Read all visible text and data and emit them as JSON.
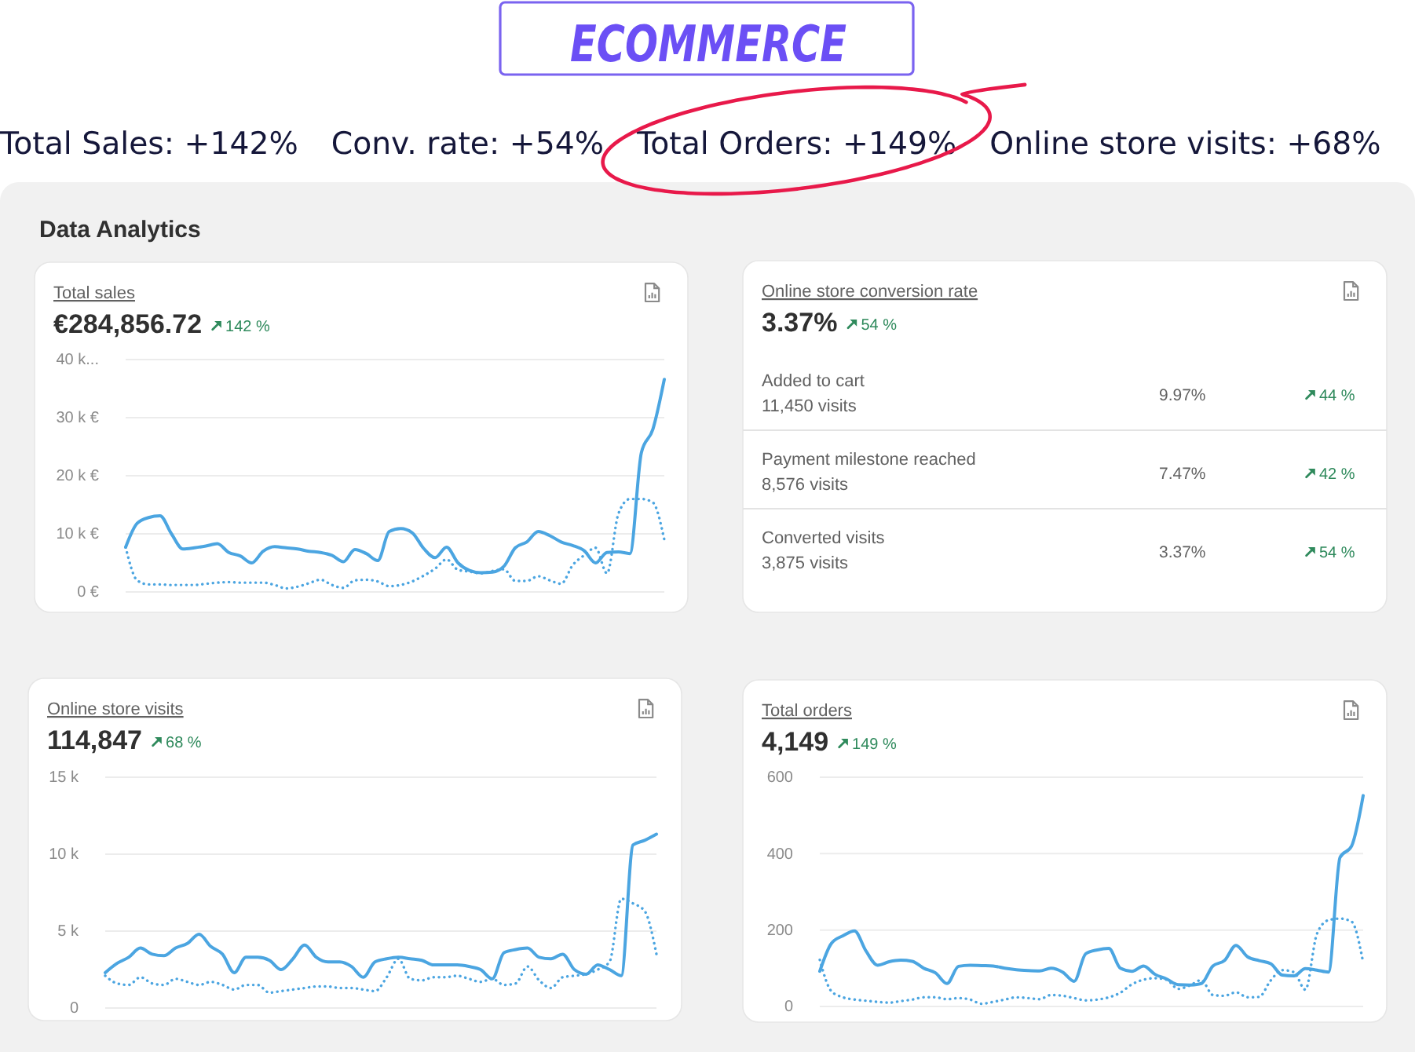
{
  "chart_data": [
    {
      "type": "other",
      "title": "ECOMMERCE",
      "subtitle": "Data Analytics",
      "annotations": [
        "Total Sales: +142%",
        "Conv. rate: +54%",
        "Total Orders: +149%",
        "Online store visits: +68%"
      ]
    },
    {
      "type": "line",
      "title": "Total sales",
      "subtitle": "€284,856.72",
      "annotations": [
        "142 %"
      ],
      "categories": [
        null,
        null,
        null,
        null,
        null,
        null,
        null,
        null,
        null,
        null,
        null,
        null,
        null,
        null,
        null,
        null,
        null,
        null,
        null,
        null,
        null,
        null,
        null,
        null,
        null,
        null,
        null,
        null,
        null,
        null,
        null,
        null,
        null,
        null,
        null,
        null,
        null,
        null,
        null,
        null,
        null,
        null,
        null,
        null,
        null,
        null,
        null,
        null
      ],
      "series": [
        {
          "color": "#4ba5e1",
          "line_style": "solid",
          "values": [
            7700,
            11800,
            12800,
            13100,
            10000,
            7400,
            7600,
            7900,
            8300,
            6800,
            6200,
            5000,
            7000,
            7800,
            7600,
            7400,
            7000,
            6800,
            6300,
            5200,
            7300,
            6600,
            5400,
            10400,
            10900,
            10200,
            7500,
            5900,
            7700,
            5000,
            3700,
            3300,
            3400,
            4400,
            7600,
            8600,
            10400,
            9700,
            8600,
            8000,
            7100,
            5000,
            6800,
            6900,
            6600,
            24000,
            28000,
            36600
          ]
        },
        {
          "color": "#4ba5e1",
          "line_style": "dotted",
          "values": [
            7700,
            2000,
            1300,
            1300,
            1200,
            1200,
            1200,
            1400,
            1600,
            1700,
            1600,
            1600,
            1600,
            1200,
            600,
            900,
            1500,
            2100,
            1200,
            700,
            2000,
            2100,
            1800,
            1000,
            1200,
            1800,
            2800,
            4000,
            5600,
            3800,
            3500,
            3200,
            3600,
            3900,
            1900,
            1900,
            2700,
            2000,
            1400,
            4600,
            6300,
            7600,
            3200,
            13500,
            16000,
            16000,
            15400,
            9000
          ]
        }
      ],
      "ylim": [
        0,
        40000
      ],
      "yticks": [
        {
          "value": 0,
          "label": "0 €"
        },
        {
          "value": 10000,
          "label": "10 k €"
        },
        {
          "value": 20000,
          "label": "20 k €"
        },
        {
          "value": 30000,
          "label": "30 k €"
        },
        {
          "value": 40000,
          "label": "40 k..."
        }
      ],
      "grid": "y",
      "tick_labels": "y"
    },
    {
      "type": "other",
      "title": "Online store conversion rate",
      "subtitle": "3.37%",
      "annotations": [
        "54 %",
        "Added to cart",
        "11,450 visits",
        "9.97%",
        "44 %",
        "Payment milestone reached",
        "8,576 visits",
        "7.47%",
        "42 %",
        "Converted visits",
        "3,875 visits",
        "3.37%",
        "54 %"
      ]
    },
    {
      "type": "line",
      "title": "Online store visits",
      "subtitle": "114,847",
      "annotations": [
        "68 %"
      ],
      "categories": [
        null,
        null,
        null,
        null,
        null,
        null,
        null,
        null,
        null,
        null,
        null,
        null,
        null,
        null,
        null,
        null,
        null,
        null,
        null,
        null,
        null,
        null,
        null,
        null,
        null,
        null,
        null,
        null,
        null,
        null,
        null,
        null,
        null,
        null,
        null,
        null,
        null,
        null,
        null,
        null,
        null,
        null,
        null,
        null,
        null,
        null,
        null,
        null
      ],
      "series": [
        {
          "color": "#4ba5e1",
          "line_style": "solid",
          "values": [
            2300,
            2900,
            3300,
            3900,
            3500,
            3400,
            3900,
            4200,
            4800,
            4000,
            3500,
            2300,
            3300,
            3300,
            3100,
            2500,
            3200,
            4100,
            3300,
            3000,
            3000,
            2700,
            2000,
            3000,
            3200,
            3300,
            3200,
            3100,
            2800,
            2800,
            2800,
            2700,
            2500,
            1900,
            3600,
            3800,
            3900,
            3300,
            3200,
            3500,
            2500,
            2200,
            2800,
            2500,
            2100,
            10600,
            10900,
            11300
          ]
        },
        {
          "color": "#4ba5e1",
          "line_style": "dotted",
          "values": [
            2100,
            1600,
            1500,
            2000,
            1600,
            1500,
            1900,
            1700,
            1500,
            1700,
            1500,
            1200,
            1500,
            1500,
            1000,
            1100,
            1200,
            1300,
            1400,
            1400,
            1300,
            1300,
            1200,
            1100,
            2000,
            3200,
            1900,
            1800,
            2000,
            2000,
            2100,
            1900,
            1700,
            1900,
            1500,
            1600,
            2700,
            1800,
            1300,
            2000,
            2100,
            2200,
            2500,
            3000,
            7100,
            6800,
            6300,
            3500
          ]
        }
      ],
      "ylim": [
        0,
        15000
      ],
      "yticks": [
        {
          "value": 0,
          "label": "0"
        },
        {
          "value": 5000,
          "label": "5 k"
        },
        {
          "value": 10000,
          "label": "10 k"
        },
        {
          "value": 15000,
          "label": "15 k"
        }
      ],
      "grid": "y",
      "tick_labels": "y"
    },
    {
      "type": "line",
      "title": "Total orders",
      "subtitle": "4,149",
      "annotations": [
        "149 %"
      ],
      "categories": [
        null,
        null,
        null,
        null,
        null,
        null,
        null,
        null,
        null,
        null,
        null,
        null,
        null,
        null,
        null,
        null,
        null,
        null,
        null,
        null,
        null,
        null,
        null,
        null,
        null,
        null,
        null,
        null,
        null,
        null,
        null,
        null,
        null,
        null,
        null,
        null,
        null,
        null,
        null,
        null,
        null,
        null,
        null,
        null,
        null,
        null,
        null,
        null
      ],
      "series": [
        {
          "color": "#4ba5e1",
          "line_style": "solid",
          "values": [
            92,
            165,
            185,
            198,
            145,
            108,
            117,
            121,
            118,
            100,
            88,
            60,
            105,
            108,
            107,
            106,
            100,
            96,
            94,
            93,
            100,
            90,
            66,
            138,
            148,
            152,
            100,
            92,
            106,
            84,
            72,
            57,
            56,
            60,
            106,
            120,
            160,
            130,
            120,
            112,
            82,
            80,
            99,
            95,
            90,
            390,
            420,
            552
          ]
        },
        {
          "color": "#4ba5e1",
          "line_style": "dotted",
          "values": [
            122,
            40,
            24,
            18,
            15,
            12,
            10,
            14,
            18,
            24,
            24,
            19,
            22,
            18,
            7,
            12,
            18,
            24,
            22,
            19,
            30,
            28,
            22,
            16,
            18,
            24,
            36,
            58,
            70,
            74,
            70,
            46,
            55,
            69,
            30,
            28,
            37,
            24,
            25,
            68,
            95,
            90,
            44,
            190,
            226,
            230,
            222,
            115
          ]
        }
      ],
      "ylim": [
        0,
        600
      ],
      "yticks": [
        0,
        200,
        400,
        600
      ],
      "grid": "y",
      "tick_labels": "y"
    }
  ]
}
